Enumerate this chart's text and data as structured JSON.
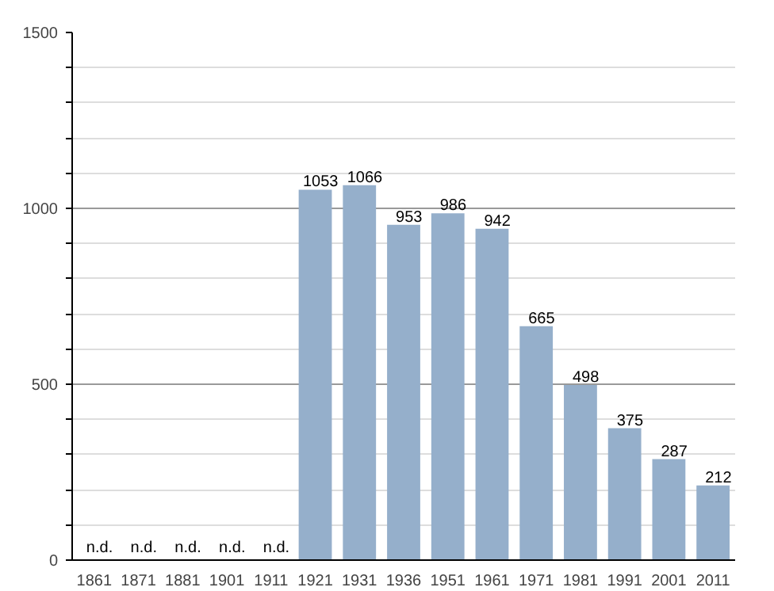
{
  "chart_data": {
    "type": "bar",
    "categories": [
      "1861",
      "1871",
      "1881",
      "1901",
      "1911",
      "1921",
      "1931",
      "1936",
      "1951",
      "1961",
      "1971",
      "1981",
      "1991",
      "2001",
      "2011"
    ],
    "values": [
      null,
      null,
      null,
      null,
      null,
      1053,
      1066,
      953,
      986,
      942,
      665,
      498,
      375,
      287,
      212
    ],
    "value_labels": [
      "n.d.",
      "n.d.",
      "n.d.",
      "n.d.",
      "n.d.",
      "1053",
      "1066",
      "953",
      "986",
      "942",
      "665",
      "498",
      "375",
      "287",
      "212"
    ],
    "color": "#95afcb",
    "ylim": [
      0,
      1500
    ],
    "yticks": [
      0,
      {
        "value": 100,
        "label": null
      },
      {
        "value": 200,
        "label": null
      },
      {
        "value": 300,
        "label": null
      },
      {
        "value": 400,
        "label": null
      },
      500,
      {
        "value": 600,
        "label": null
      },
      {
        "value": 700,
        "label": null
      },
      {
        "value": 800,
        "label": null
      },
      {
        "value": 900,
        "label": null
      },
      1000,
      {
        "value": 1100,
        "label": null
      },
      {
        "value": 1200,
        "label": null
      },
      {
        "value": 1300,
        "label": null
      },
      {
        "value": 1400,
        "label": null
      },
      1500
    ],
    "grid": "y"
  }
}
